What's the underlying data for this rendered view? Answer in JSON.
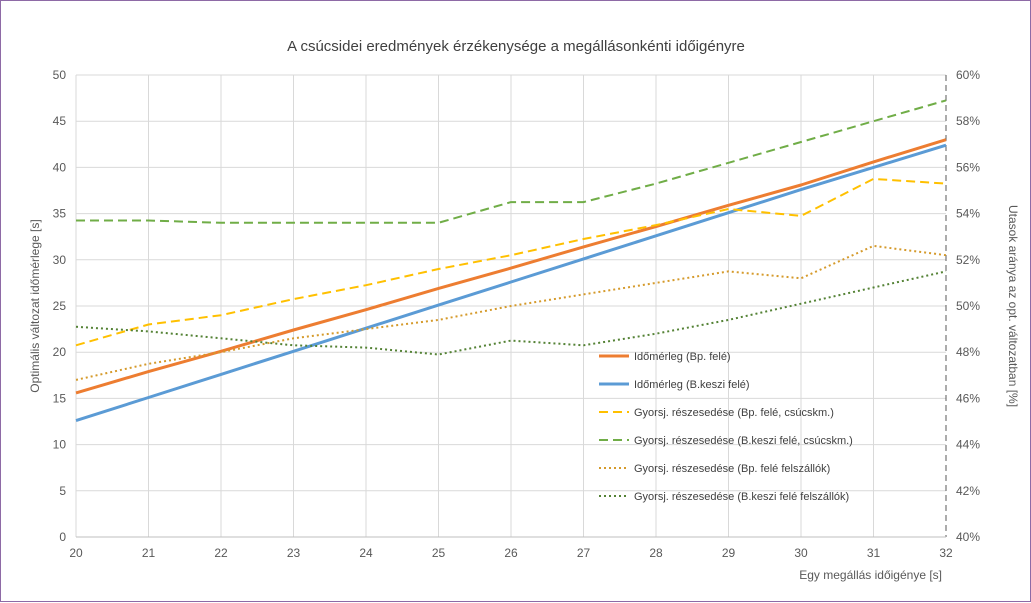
{
  "chart_data": {
    "type": "line",
    "title": "A csúcsidei eredmények érzékenysége a megállásonkénti időigényre",
    "xlabel": "Egy megállás időigénye [s]",
    "ylabel_left": "Optimális változat időmérlege [s]",
    "ylabel_right": "Utasok aránya az opt. változatban [%]",
    "x": [
      20,
      21,
      22,
      23,
      24,
      25,
      26,
      27,
      28,
      29,
      30,
      31,
      32
    ],
    "x_ticks": [
      "20",
      "21",
      "22",
      "23",
      "24",
      "25",
      "26",
      "27",
      "28",
      "29",
      "30",
      "31",
      "32"
    ],
    "ylim_left": [
      0,
      50
    ],
    "y_ticks_left": [
      "0",
      "5",
      "10",
      "15",
      "20",
      "25",
      "30",
      "35",
      "40",
      "45",
      "50"
    ],
    "ylim_right": [
      40,
      60
    ],
    "y_ticks_right": [
      "40%",
      "42%",
      "44%",
      "46%",
      "48%",
      "50%",
      "52%",
      "54%",
      "56%",
      "58%",
      "60%"
    ],
    "grid": true,
    "legend_position": "right-bottom",
    "series": [
      {
        "name": "Időmérleg (Bp. felé)",
        "axis": "left",
        "style": "solid",
        "color": "#ed7d31",
        "values": [
          15.6,
          17.9,
          20.1,
          22.4,
          24.6,
          26.9,
          29.1,
          31.4,
          33.6,
          35.9,
          38.1,
          40.6,
          43.0
        ]
      },
      {
        "name": "Időmérleg (B.keszi felé)",
        "axis": "left",
        "style": "solid",
        "color": "#5b9bd5",
        "values": [
          12.6,
          15.1,
          17.6,
          20.1,
          22.6,
          25.1,
          27.6,
          30.1,
          32.6,
          35.1,
          37.6,
          40.0,
          42.4
        ]
      },
      {
        "name": "Gyorsj. részesedése (Bp. felé, csúcskm.)",
        "axis": "right",
        "style": "dashed",
        "color": "#ffc000",
        "values": [
          48.3,
          49.2,
          49.6,
          50.3,
          50.9,
          51.6,
          52.2,
          52.9,
          53.5,
          54.2,
          53.9,
          55.5,
          55.3
        ]
      },
      {
        "name": "Gyorsj. részesedése (B.keszi felé, csúcskm.)",
        "axis": "right",
        "style": "dashed",
        "color": "#70ad47",
        "values": [
          53.7,
          53.7,
          53.6,
          53.6,
          53.6,
          53.6,
          54.5,
          54.5,
          55.3,
          56.2,
          57.1,
          58.0,
          58.9
        ]
      },
      {
        "name": "Gyorsj. részesedése (Bp. felé felszállók)",
        "axis": "right",
        "style": "dotted",
        "color": "#d59a2b",
        "values": [
          46.8,
          47.5,
          48.0,
          48.6,
          49.0,
          49.4,
          50.0,
          50.5,
          51.0,
          51.5,
          51.2,
          52.6,
          52.2
        ]
      },
      {
        "name": "Gyorsj. részesedése (B.keszi felé felszállók)",
        "axis": "right",
        "style": "dotted",
        "color": "#548235",
        "values": [
          49.1,
          48.9,
          48.6,
          48.3,
          48.2,
          47.9,
          48.5,
          48.3,
          48.8,
          49.4,
          50.1,
          50.8,
          51.5
        ]
      }
    ]
  }
}
